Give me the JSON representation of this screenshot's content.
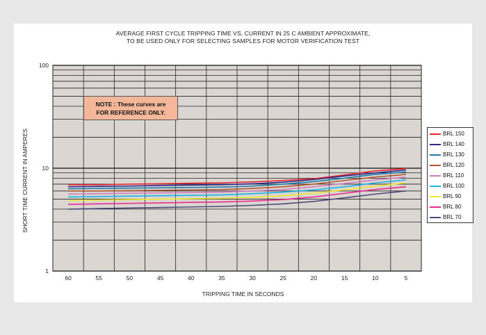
{
  "chart_data": {
    "type": "line",
    "title_lines": [
      "AVERAGE FIRST CYCLE TRIPPING TIME VS, CURRENT IN 25 C AMBIENT APPROXIMATE,",
      "TO BE USED ONLY FOR SELECTING SAMPLES FOR MOTOR VERIFICATION TEST"
    ],
    "xlabel": "TRIPPING TIME IN SECONDS",
    "ylabel": "SHORT TIME CURRENT IN AMPERES",
    "x_ticks": [
      60,
      55,
      50,
      45,
      40,
      35,
      30,
      25,
      20,
      15,
      10,
      5
    ],
    "y_scale": "log",
    "y_ticks": [
      1,
      10,
      100
    ],
    "y_tick_labels": [
      "1",
      "10",
      "100"
    ],
    "ylim": [
      1,
      100
    ],
    "grid": true,
    "legend_position": "right",
    "x": [
      60,
      55,
      50,
      45,
      40,
      35,
      30,
      25,
      20,
      15,
      10,
      5
    ],
    "series": [
      {
        "name": "BRL 150",
        "color": "#e8252b",
        "values": [
          6.9,
          6.9,
          7.0,
          7.05,
          7.15,
          7.2,
          7.35,
          7.6,
          7.9,
          8.6,
          9.4,
          9.9
        ]
      },
      {
        "name": "BRL 140",
        "color": "#2b2b8e",
        "values": [
          6.6,
          6.65,
          6.7,
          6.8,
          6.85,
          6.9,
          7.05,
          7.3,
          7.75,
          8.4,
          9.0,
          9.6
        ]
      },
      {
        "name": "BRL 130",
        "color": "#1f7aa6",
        "values": [
          6.3,
          6.35,
          6.4,
          6.45,
          6.5,
          6.55,
          6.7,
          7.0,
          7.4,
          8.0,
          8.7,
          9.2
        ]
      },
      {
        "name": "BRL 120",
        "color": "#b4552d",
        "values": [
          6.0,
          6.0,
          6.05,
          6.1,
          6.15,
          6.2,
          6.35,
          6.6,
          7.0,
          7.6,
          8.2,
          8.7
        ]
      },
      {
        "name": "BRL 110",
        "color": "#cf7fc0",
        "values": [
          5.6,
          5.65,
          5.7,
          5.75,
          5.8,
          5.85,
          6.0,
          6.2,
          6.6,
          7.1,
          7.7,
          8.2
        ]
      },
      {
        "name": "BRL 100",
        "color": "#17b5e5",
        "values": [
          5.25,
          5.3,
          5.35,
          5.4,
          5.45,
          5.5,
          5.65,
          5.85,
          6.15,
          6.6,
          7.2,
          7.7
        ]
      },
      {
        "name": "BRL 90",
        "color": "#f0ea2c",
        "values": [
          4.85,
          4.9,
          4.95,
          5.0,
          5.05,
          5.1,
          5.2,
          5.4,
          5.7,
          6.15,
          6.7,
          7.2
        ]
      },
      {
        "name": "BRL 80",
        "color": "#e62d8f",
        "values": [
          4.45,
          4.5,
          4.55,
          4.6,
          4.65,
          4.7,
          4.8,
          4.95,
          5.25,
          5.7,
          6.2,
          6.6
        ]
      },
      {
        "name": "BRL 70",
        "color": "#4b4b7a",
        "values": [
          4.0,
          4.05,
          4.1,
          4.15,
          4.2,
          4.25,
          4.35,
          4.5,
          4.75,
          5.15,
          5.6,
          6.0
        ]
      }
    ],
    "annotations": [
      "NOTE : These curves are",
      "FOR REFERENCE ONLY."
    ]
  },
  "colors": {
    "page_background": "#e8e8e8",
    "plot_background": "#dcd6d3",
    "note_background": "#f5b79a"
  }
}
